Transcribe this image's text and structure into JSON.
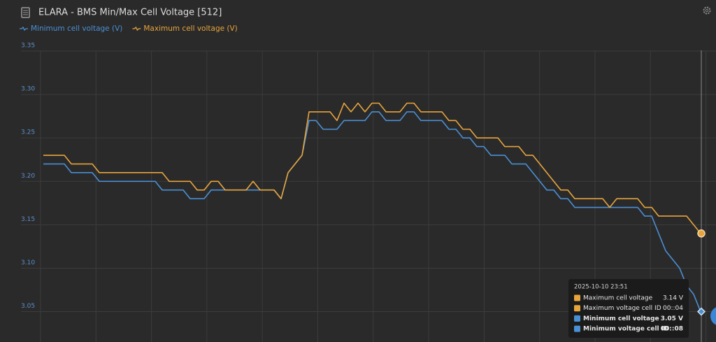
{
  "chart_data": {
    "type": "line",
    "title": "ELARA - BMS Min/Max Cell Voltage [512]",
    "categories": [
      null,
      null,
      null,
      null,
      null,
      null,
      null,
      null,
      null,
      null,
      null,
      null,
      null,
      null,
      null,
      null,
      null,
      null,
      null,
      null,
      null,
      null,
      null,
      null,
      null,
      null,
      null,
      null,
      null,
      null,
      null,
      null,
      null,
      null,
      null,
      null,
      null,
      null,
      null,
      null,
      null,
      null,
      null,
      null,
      null,
      null,
      null,
      null,
      null,
      null,
      null,
      null,
      null,
      null,
      null,
      null,
      null,
      null,
      null,
      null,
      null,
      null,
      null,
      null,
      null,
      null,
      null,
      null,
      null,
      null,
      null,
      null,
      null,
      null,
      null,
      null,
      null,
      null,
      null,
      null,
      null,
      null,
      null,
      null,
      null,
      null,
      null,
      null,
      null,
      null,
      null,
      null,
      null,
      null,
      null
    ],
    "series": [
      {
        "name": "Minimum cell voltage (V)",
        "color": "#4b8fd3",
        "values": [
          3.22,
          3.22,
          3.22,
          3.22,
          3.21,
          3.21,
          3.21,
          3.21,
          3.2,
          3.2,
          3.2,
          3.2,
          3.2,
          3.2,
          3.2,
          3.2,
          3.2,
          3.19,
          3.19,
          3.19,
          3.19,
          3.18,
          3.18,
          3.18,
          3.19,
          3.19,
          3.19,
          3.19,
          3.19,
          3.19,
          3.19,
          3.19,
          3.19,
          3.19,
          3.18,
          3.21,
          3.22,
          3.23,
          3.27,
          3.27,
          3.26,
          3.26,
          3.26,
          3.27,
          3.27,
          3.27,
          3.27,
          3.28,
          3.28,
          3.27,
          3.27,
          3.27,
          3.28,
          3.28,
          3.27,
          3.27,
          3.27,
          3.27,
          3.26,
          3.26,
          3.25,
          3.25,
          3.24,
          3.24,
          3.23,
          3.23,
          3.23,
          3.22,
          3.22,
          3.22,
          3.21,
          3.2,
          3.19,
          3.19,
          3.18,
          3.18,
          3.17,
          3.17,
          3.17,
          3.17,
          3.17,
          3.17,
          3.17,
          3.17,
          3.17,
          3.17,
          3.16,
          3.16,
          3.14,
          3.12,
          3.11,
          3.1,
          3.08,
          3.07,
          3.05
        ]
      },
      {
        "name": "Maximum cell voltage (V)",
        "color": "#e8a43c",
        "values": [
          3.23,
          3.23,
          3.23,
          3.23,
          3.22,
          3.22,
          3.22,
          3.22,
          3.21,
          3.21,
          3.21,
          3.21,
          3.21,
          3.21,
          3.21,
          3.21,
          3.21,
          3.21,
          3.2,
          3.2,
          3.2,
          3.2,
          3.19,
          3.19,
          3.2,
          3.2,
          3.19,
          3.19,
          3.19,
          3.19,
          3.2,
          3.19,
          3.19,
          3.19,
          3.18,
          3.21,
          3.22,
          3.23,
          3.28,
          3.28,
          3.28,
          3.28,
          3.27,
          3.29,
          3.28,
          3.29,
          3.28,
          3.29,
          3.29,
          3.28,
          3.28,
          3.28,
          3.29,
          3.29,
          3.28,
          3.28,
          3.28,
          3.28,
          3.27,
          3.27,
          3.26,
          3.26,
          3.25,
          3.25,
          3.25,
          3.25,
          3.24,
          3.24,
          3.24,
          3.23,
          3.23,
          3.22,
          3.21,
          3.2,
          3.19,
          3.19,
          3.18,
          3.18,
          3.18,
          3.18,
          3.18,
          3.17,
          3.18,
          3.18,
          3.18,
          3.18,
          3.17,
          3.17,
          3.16,
          3.16,
          3.16,
          3.16,
          3.16,
          3.15,
          3.14
        ]
      }
    ],
    "ylim": [
      3.015,
      3.35
    ],
    "yticks": [
      3.05,
      {
        "value": 3.1,
        "label": "3.10"
      },
      3.15,
      {
        "value": 3.2,
        "label": "3.20"
      },
      3.25,
      {
        "value": 3.3,
        "label": "3.30"
      },
      3.35
    ],
    "grid": true,
    "tooltip": {
      "title": "2025-10-10 23:51",
      "items": [
        {
          "name": "Maximum cell voltage",
          "value": "3.14 V",
          "color": "#e8a43c",
          "bold": false
        },
        {
          "name": "Maximum voltage cell ID",
          "value": "00::04",
          "color": "#e8a43c",
          "bold": false
        },
        {
          "name": "Minimum cell voltage",
          "value": "3.05 V",
          "color": "#4b8fd3",
          "bold": true
        },
        {
          "name": "Minimum voltage cell ID",
          "value": "00::08",
          "color": "#4b8fd3",
          "bold": true
        }
      ]
    }
  }
}
